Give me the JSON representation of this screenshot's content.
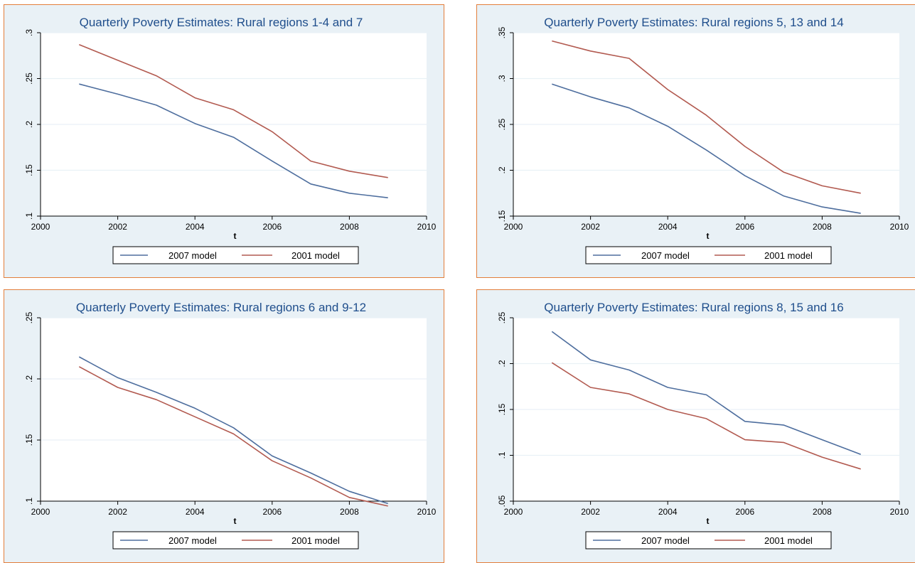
{
  "colors": {
    "background": "#e9f1f6",
    "frame": "#e37e3b",
    "plot": "#ffffff",
    "grid": "#e9f1f6",
    "title": "#1f4e8c",
    "series_2007": "#4e6e9e",
    "series_2001": "#b25a50"
  },
  "chart_data": [
    {
      "type": "line",
      "title": "Quarterly Poverty Estimates: Rural regions 1-4 and 7",
      "xlabel": "t",
      "ylabel": "",
      "xlim": [
        2000,
        2010
      ],
      "ylim": [
        0.1,
        0.3
      ],
      "xticks": [
        "2000",
        "2002",
        "2004",
        "2006",
        "2008",
        "2010"
      ],
      "xtick_values": [
        2000,
        2002,
        2004,
        2006,
        2008,
        2010
      ],
      "yticks": [
        ".1",
        ".15",
        ".2",
        ".25",
        ".3"
      ],
      "ytick_values": [
        0.1,
        0.15,
        0.2,
        0.25,
        0.3
      ],
      "x": [
        2001,
        2002,
        2003,
        2004,
        2005,
        2006,
        2007,
        2008,
        2009
      ],
      "series": [
        {
          "name": "2007 model",
          "color": "#4e6e9e",
          "values": [
            0.244,
            0.233,
            0.221,
            0.201,
            0.186,
            0.16,
            0.135,
            0.125,
            0.12
          ]
        },
        {
          "name": "2001 model",
          "color": "#b25a50",
          "values": [
            0.287,
            0.27,
            0.253,
            0.229,
            0.216,
            0.192,
            0.16,
            0.149,
            0.142
          ]
        }
      ],
      "legend": "bottom",
      "grid": true
    },
    {
      "type": "line",
      "title": "Quarterly Poverty Estimates: Rural regions 5, 13 and 14",
      "xlabel": "t",
      "ylabel": "",
      "xlim": [
        2000,
        2010
      ],
      "ylim": [
        0.15,
        0.35
      ],
      "xticks": [
        "2000",
        "2002",
        "2004",
        "2006",
        "2008",
        "2010"
      ],
      "xtick_values": [
        2000,
        2002,
        2004,
        2006,
        2008,
        2010
      ],
      "yticks": [
        ".15",
        ".2",
        ".25",
        ".3",
        ".35"
      ],
      "ytick_values": [
        0.15,
        0.2,
        0.25,
        0.3,
        0.35
      ],
      "x": [
        2001,
        2002,
        2003,
        2004,
        2005,
        2006,
        2007,
        2008,
        2009
      ],
      "series": [
        {
          "name": "2007 model",
          "color": "#4e6e9e",
          "values": [
            0.294,
            0.28,
            0.268,
            0.248,
            0.222,
            0.194,
            0.172,
            0.16,
            0.153
          ]
        },
        {
          "name": "2001 model",
          "color": "#b25a50",
          "values": [
            0.341,
            0.33,
            0.322,
            0.288,
            0.26,
            0.226,
            0.198,
            0.183,
            0.175
          ]
        }
      ],
      "legend": "bottom",
      "grid": true
    },
    {
      "type": "line",
      "title": "Quarterly Poverty Estimates: Rural regions 6 and 9-12",
      "xlabel": "t",
      "ylabel": "",
      "xlim": [
        2000,
        2010
      ],
      "ylim": [
        0.1,
        0.25
      ],
      "xticks": [
        "2000",
        "2002",
        "2004",
        "2006",
        "2008",
        "2010"
      ],
      "xtick_values": [
        2000,
        2002,
        2004,
        2006,
        2008,
        2010
      ],
      "yticks": [
        ".1",
        ".15",
        ".2",
        ".25"
      ],
      "ytick_values": [
        0.1,
        0.15,
        0.2,
        0.25
      ],
      "x": [
        2001,
        2002,
        2003,
        2004,
        2005,
        2006,
        2007,
        2008,
        2009
      ],
      "series": [
        {
          "name": "2007 model",
          "color": "#4e6e9e",
          "values": [
            0.218,
            0.201,
            0.189,
            0.176,
            0.16,
            0.137,
            0.123,
            0.108,
            0.098
          ]
        },
        {
          "name": "2001 model",
          "color": "#b25a50",
          "values": [
            0.21,
            0.193,
            0.183,
            0.169,
            0.155,
            0.133,
            0.119,
            0.103,
            0.096
          ]
        }
      ],
      "legend": "bottom",
      "grid": true
    },
    {
      "type": "line",
      "title": "Quarterly Poverty Estimates: Rural regions 8, 15 and 16",
      "xlabel": "t",
      "ylabel": "",
      "xlim": [
        2000,
        2010
      ],
      "ylim": [
        0.05,
        0.25
      ],
      "xticks": [
        "2000",
        "2002",
        "2004",
        "2006",
        "2008",
        "2010"
      ],
      "xtick_values": [
        2000,
        2002,
        2004,
        2006,
        2008,
        2010
      ],
      "yticks": [
        ".05",
        ".1",
        ".15",
        ".2",
        ".25"
      ],
      "ytick_values": [
        0.05,
        0.1,
        0.15,
        0.2,
        0.25
      ],
      "x": [
        2001,
        2002,
        2003,
        2004,
        2005,
        2006,
        2007,
        2008,
        2009
      ],
      "series": [
        {
          "name": "2007 model",
          "color": "#4e6e9e",
          "values": [
            0.235,
            0.204,
            0.193,
            0.174,
            0.166,
            0.137,
            0.133,
            0.117,
            0.101
          ]
        },
        {
          "name": "2001 model",
          "color": "#b25a50",
          "values": [
            0.201,
            0.174,
            0.167,
            0.15,
            0.14,
            0.117,
            0.114,
            0.098,
            0.085
          ]
        }
      ],
      "legend": "bottom",
      "grid": true
    }
  ]
}
